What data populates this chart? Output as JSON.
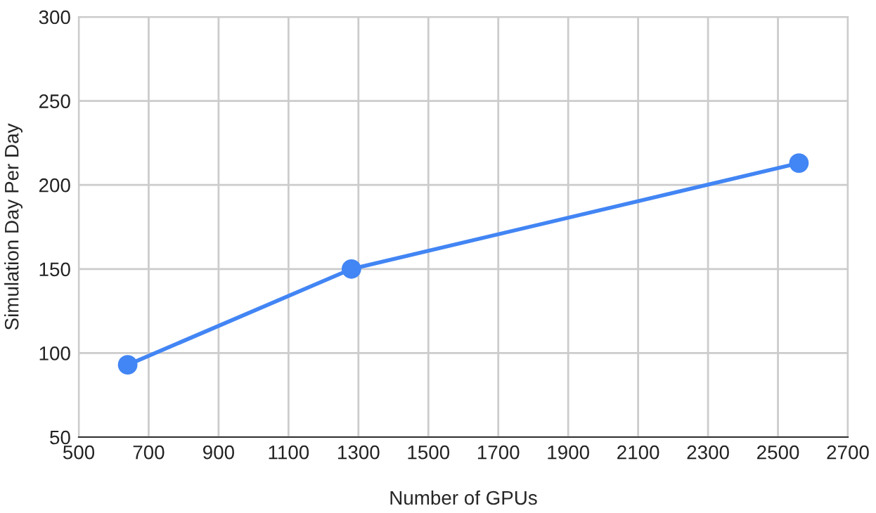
{
  "chart_data": {
    "type": "line",
    "xlabel": "Number of GPUs",
    "ylabel": "Simulation Day Per Day",
    "x": [
      640,
      1280,
      2560
    ],
    "series": [
      {
        "color": "#4285f4",
        "values": [
          93,
          150,
          213
        ]
      }
    ],
    "xlim": [
      500,
      2700
    ],
    "xticks": [
      500,
      700,
      900,
      1100,
      1300,
      1500,
      1700,
      1900,
      2100,
      2300,
      2500,
      2700
    ],
    "ylim": [
      50,
      300
    ],
    "yticks": [
      50,
      100,
      150,
      200,
      250,
      300
    ],
    "grid": true,
    "marker": "circle",
    "line_style": "solid"
  }
}
